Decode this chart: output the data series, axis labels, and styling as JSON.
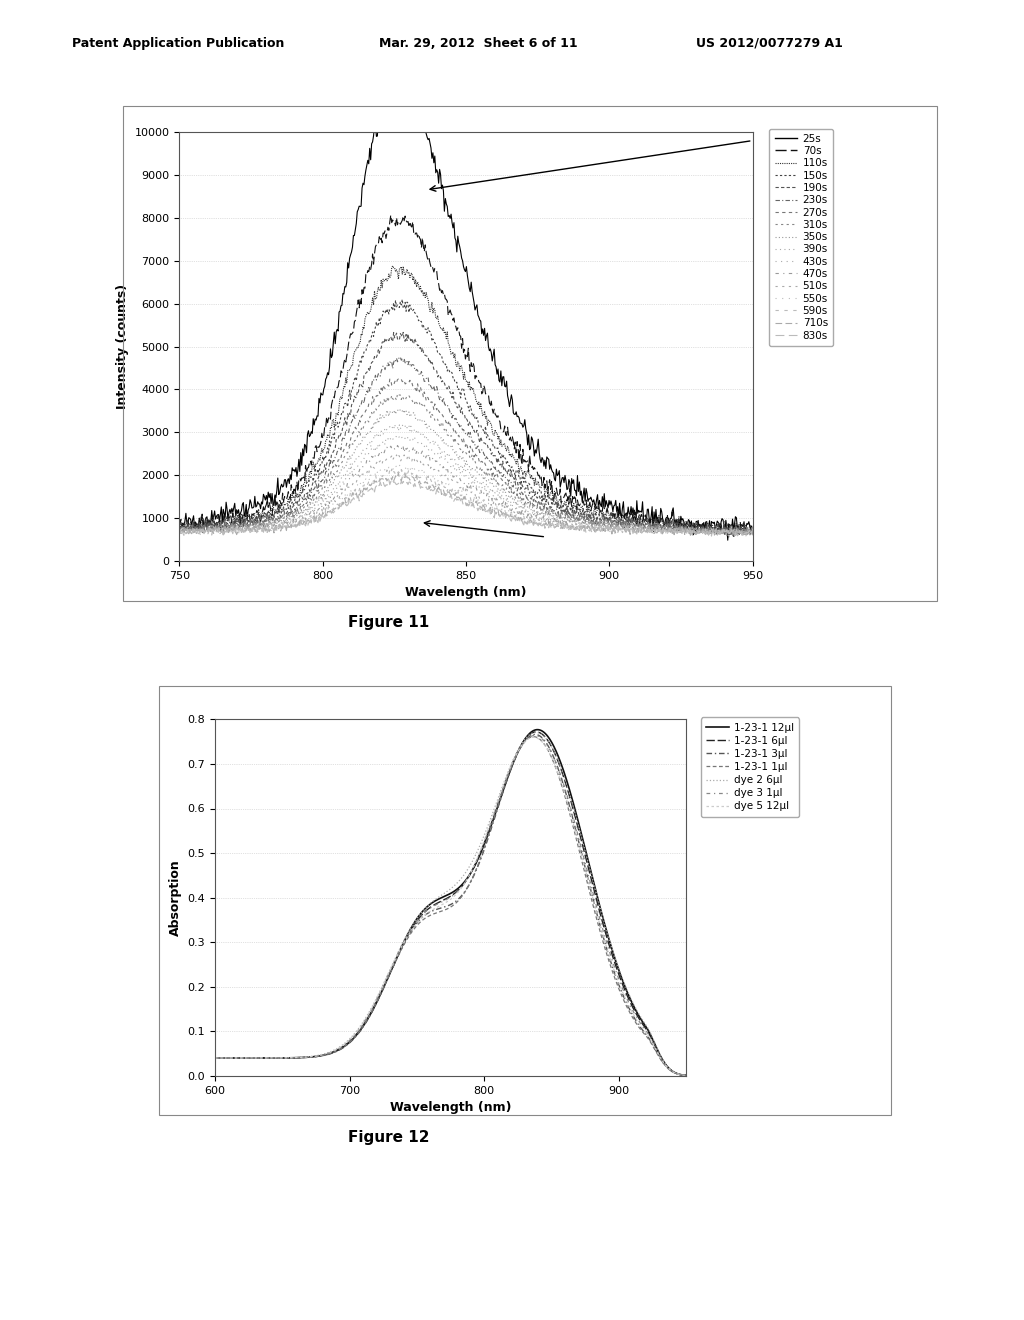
{
  "header_left": "Patent Application Publication",
  "header_mid": "Mar. 29, 2012  Sheet 6 of 11",
  "header_right": "US 2012/0077279 A1",
  "fig11_caption": "Figure 11",
  "fig12_caption": "Figure 12",
  "fig11": {
    "xlabel": "Wavelength (nm)",
    "ylabel": "Intensity (counts)",
    "xlim": [
      750,
      950
    ],
    "ylim": [
      0,
      10000
    ],
    "yticks": [
      0,
      1000,
      2000,
      3000,
      4000,
      5000,
      6000,
      7000,
      8000,
      9000,
      10000
    ],
    "xticks": [
      750,
      800,
      850,
      900,
      950
    ],
    "legend_labels": [
      "25s",
      "70s",
      "110s",
      "150s",
      "190s",
      "230s",
      "270s",
      "310s",
      "350s",
      "390s",
      "430s",
      "470s",
      "510s",
      "550s",
      "590s",
      "710s",
      "830s"
    ]
  },
  "fig12": {
    "xlabel": "Wavelength (nm)",
    "ylabel": "Absorption",
    "xlim": [
      600,
      950
    ],
    "ylim": [
      0,
      0.8
    ],
    "yticks": [
      0,
      0.1,
      0.2,
      0.3,
      0.4,
      0.5,
      0.6,
      0.7,
      0.8
    ],
    "xticks": [
      600,
      700,
      800,
      900
    ],
    "legend_labels": [
      "1-23-1 12μl",
      "1-23-1 6μl",
      "1-23-1 3μl",
      "1-23-1 1μl",
      "dye 2 6μl",
      "dye 3 1μl",
      "dye 5 12μl"
    ]
  }
}
